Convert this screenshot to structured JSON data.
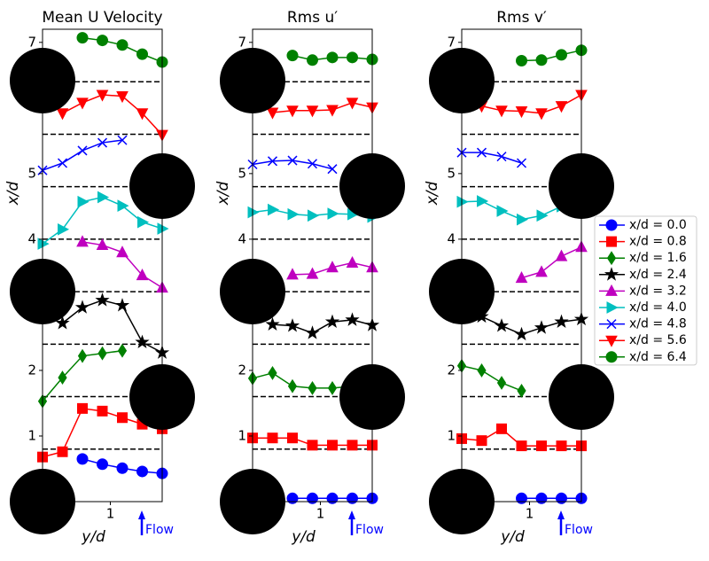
{
  "chart_data": [
    {
      "type": "line",
      "title": "Mean U Velocity",
      "x_label": "y/d",
      "y_label": "x/d",
      "annotation": "Flow",
      "xlim": [
        0.15,
        1.65
      ],
      "ylim": [
        0,
        7.2
      ],
      "xticks": [
        1
      ],
      "yticks": [
        1,
        2,
        4,
        5,
        7
      ],
      "hlines": [
        0.8,
        1.6,
        2.4,
        3.2,
        4.0,
        4.8,
        5.6,
        6.4
      ],
      "series": [
        {
          "color": "#0000ff",
          "marker": "circle",
          "x": [
            0.65,
            0.9,
            1.15,
            1.4,
            1.65
          ],
          "values": [
            0.65,
            0.57,
            0.51,
            0.46,
            0.43
          ]
        },
        {
          "color": "#ff0000",
          "marker": "square",
          "x": [
            0.15,
            0.4,
            0.65,
            0.9,
            1.15,
            1.4,
            1.65
          ],
          "values": [
            0.68,
            0.76,
            1.42,
            1.38,
            1.28,
            1.18,
            1.11
          ]
        },
        {
          "color": "#008000",
          "marker": "diamond",
          "x": [
            0.15,
            0.4,
            0.65,
            0.9,
            1.15
          ],
          "values": [
            1.53,
            1.89,
            2.22,
            2.26,
            2.3
          ]
        },
        {
          "color": "#000000",
          "marker": "star",
          "x": [
            0.4,
            0.65,
            0.9,
            1.15,
            1.4,
            1.65
          ],
          "values": [
            2.72,
            2.96,
            3.07,
            2.99,
            2.43,
            2.27
          ]
        },
        {
          "color": "#bf00bf",
          "marker": "triangle-up",
          "x": [
            0.65,
            0.9,
            1.15,
            1.4,
            1.65
          ],
          "values": [
            3.96,
            3.91,
            3.8,
            3.45,
            3.26
          ]
        },
        {
          "color": "#00bfbf",
          "marker": "triangle-right",
          "x": [
            0.15,
            0.4,
            0.65,
            0.9,
            1.15,
            1.4,
            1.65
          ],
          "values": [
            3.93,
            4.15,
            4.57,
            4.64,
            4.51,
            4.26,
            4.16
          ]
        },
        {
          "color": "#0000ff",
          "marker": "x",
          "x": [
            0.15,
            0.4,
            0.65,
            0.9,
            1.15
          ],
          "values": [
            5.05,
            5.16,
            5.35,
            5.47,
            5.51
          ]
        },
        {
          "color": "#ff0000",
          "marker": "triangle-down",
          "x": [
            0.4,
            0.65,
            0.9,
            1.15,
            1.4,
            1.65
          ],
          "values": [
            5.92,
            6.08,
            6.2,
            6.18,
            5.92,
            5.59
          ]
        },
        {
          "color": "#008000",
          "marker": "circle",
          "x": [
            0.65,
            0.9,
            1.15,
            1.4,
            1.65
          ],
          "values": [
            7.07,
            7.03,
            6.96,
            6.82,
            6.7
          ]
        }
      ]
    },
    {
      "type": "line",
      "title": "Rms u′",
      "x_label": "y/d",
      "y_label": "x/d",
      "annotation": "Flow",
      "xlim": [
        0.15,
        1.65
      ],
      "ylim": [
        0,
        7.2
      ],
      "xticks": [
        1
      ],
      "yticks": [
        1,
        2,
        4,
        5,
        7
      ],
      "hlines": [
        0.8,
        1.6,
        2.4,
        3.2,
        4.0,
        4.8,
        5.6,
        6.4
      ],
      "series": [
        {
          "color": "#0000ff",
          "marker": "circle",
          "x": [
            0.65,
            0.9,
            1.15,
            1.4,
            1.65
          ],
          "values": [
            0.05,
            0.05,
            0.05,
            0.05,
            0.05
          ]
        },
        {
          "color": "#ff0000",
          "marker": "square",
          "x": [
            0.15,
            0.4,
            0.65,
            0.9,
            1.15,
            1.4,
            1.65
          ],
          "values": [
            0.97,
            0.97,
            0.97,
            0.86,
            0.86,
            0.86,
            0.86
          ]
        },
        {
          "color": "#008000",
          "marker": "diamond",
          "x": [
            0.15,
            0.4,
            0.65,
            0.9,
            1.15,
            1.4
          ],
          "values": [
            1.88,
            1.96,
            1.76,
            1.73,
            1.73,
            1.76
          ]
        },
        {
          "color": "#000000",
          "marker": "star",
          "x": [
            0.4,
            0.65,
            0.9,
            1.15,
            1.4,
            1.65
          ],
          "values": [
            2.7,
            2.68,
            2.57,
            2.74,
            2.77,
            2.69
          ]
        },
        {
          "color": "#bf00bf",
          "marker": "triangle-up",
          "x": [
            0.65,
            0.9,
            1.15,
            1.4,
            1.65
          ],
          "values": [
            3.46,
            3.47,
            3.57,
            3.64,
            3.57
          ]
        },
        {
          "color": "#00bfbf",
          "marker": "triangle-right",
          "x": [
            0.15,
            0.4,
            0.65,
            0.9,
            1.15,
            1.4,
            1.65
          ],
          "values": [
            4.41,
            4.45,
            4.38,
            4.36,
            4.39,
            4.38,
            4.34
          ]
        },
        {
          "color": "#0000ff",
          "marker": "x",
          "x": [
            0.15,
            0.4,
            0.65,
            0.9,
            1.15
          ],
          "values": [
            5.14,
            5.19,
            5.2,
            5.15,
            5.07
          ]
        },
        {
          "color": "#ff0000",
          "marker": "triangle-down",
          "x": [
            0.4,
            0.65,
            0.9,
            1.15,
            1.4,
            1.65
          ],
          "values": [
            5.93,
            5.96,
            5.96,
            5.97,
            6.08,
            6.01
          ]
        },
        {
          "color": "#008000",
          "marker": "circle",
          "x": [
            0.65,
            0.9,
            1.15,
            1.4,
            1.65
          ],
          "values": [
            6.8,
            6.73,
            6.77,
            6.77,
            6.74
          ]
        }
      ]
    },
    {
      "type": "line",
      "title": "Rms v′",
      "x_label": "y/d",
      "y_label": "x/d",
      "annotation": "Flow",
      "xlim": [
        0.15,
        1.65
      ],
      "ylim": [
        0,
        7.2
      ],
      "xticks": [
        1
      ],
      "yticks": [
        1,
        2,
        4,
        5,
        7
      ],
      "hlines": [
        0.8,
        1.6,
        2.4,
        3.2,
        4.0,
        4.8,
        5.6,
        6.4
      ],
      "legend": "outside right",
      "series": [
        {
          "name": "x/d = 0.0",
          "color": "#0000ff",
          "marker": "circle",
          "x": [
            0.9,
            1.15,
            1.4,
            1.65
          ],
          "values": [
            0.05,
            0.05,
            0.05,
            0.05
          ]
        },
        {
          "name": "x/d = 0.8",
          "color": "#ff0000",
          "marker": "square",
          "x": [
            0.15,
            0.4,
            0.65,
            0.9,
            1.15,
            1.4,
            1.65
          ],
          "values": [
            0.96,
            0.93,
            1.11,
            0.85,
            0.85,
            0.85,
            0.85
          ]
        },
        {
          "name": "x/d = 1.6",
          "color": "#008000",
          "marker": "diamond",
          "x": [
            0.15,
            0.4,
            0.65,
            0.9
          ],
          "values": [
            2.07,
            2.0,
            1.81,
            1.69
          ]
        },
        {
          "name": "x/d = 2.4",
          "color": "#000000",
          "marker": "star",
          "x": [
            0.4,
            0.65,
            0.9,
            1.15,
            1.4,
            1.65
          ],
          "values": [
            2.82,
            2.68,
            2.55,
            2.65,
            2.74,
            2.78
          ]
        },
        {
          "name": "x/d = 3.2",
          "color": "#bf00bf",
          "marker": "triangle-up",
          "x": [
            0.9,
            1.15,
            1.4,
            1.65
          ],
          "values": [
            3.41,
            3.5,
            3.74,
            3.88
          ]
        },
        {
          "name": "x/d = 4.0",
          "color": "#00bfbf",
          "marker": "triangle-right",
          "x": [
            0.15,
            0.4,
            0.65,
            0.9,
            1.15,
            1.4,
            1.65
          ],
          "values": [
            4.57,
            4.58,
            4.43,
            4.3,
            4.36,
            4.5,
            4.59
          ]
        },
        {
          "name": "x/d = 4.8",
          "color": "#0000ff",
          "marker": "x",
          "x": [
            0.15,
            0.4,
            0.65,
            0.9
          ],
          "values": [
            5.32,
            5.32,
            5.26,
            5.16
          ]
        },
        {
          "name": "x/d = 5.6",
          "color": "#ff0000",
          "marker": "triangle-down",
          "x": [
            0.4,
            0.65,
            0.9,
            1.15,
            1.4,
            1.65
          ],
          "values": [
            6.03,
            5.96,
            5.95,
            5.92,
            6.03,
            6.2
          ]
        },
        {
          "name": "x/d = 6.4",
          "color": "#008000",
          "marker": "circle",
          "x": [
            0.9,
            1.15,
            1.4,
            1.65
          ],
          "values": [
            6.72,
            6.73,
            6.81,
            6.88
          ]
        }
      ]
    }
  ]
}
